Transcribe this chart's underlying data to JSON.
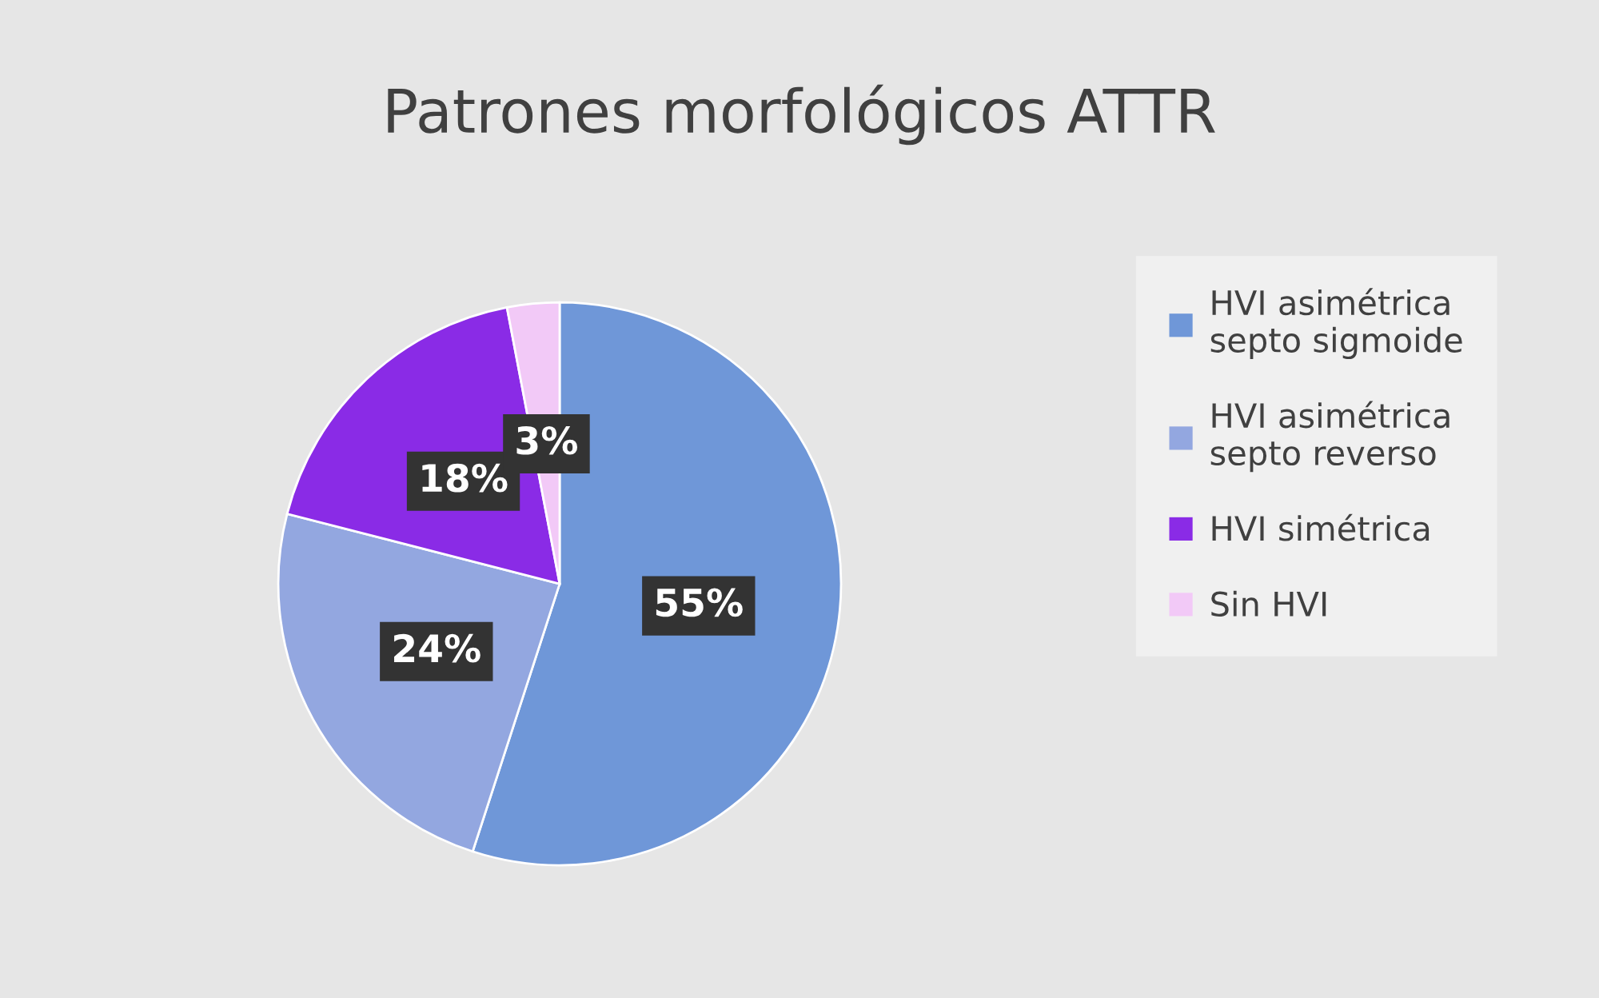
{
  "chart_data": {
    "type": "pie",
    "title": "Patrones morfológicos ATTR",
    "categories": [
      "HVI asimétrica\nsepto sigmoide",
      "HVI asimétrica\nsepto reverso",
      "HVI simétrica",
      "Sin HVI"
    ],
    "values": [
      55,
      24,
      18,
      3
    ],
    "colors": [
      "#6f97d8",
      "#93a7e0",
      "#8a2be6",
      "#f2c9f7"
    ],
    "value_labels": [
      "55%",
      "24%",
      "18%",
      "3%"
    ],
    "legend": "right"
  }
}
